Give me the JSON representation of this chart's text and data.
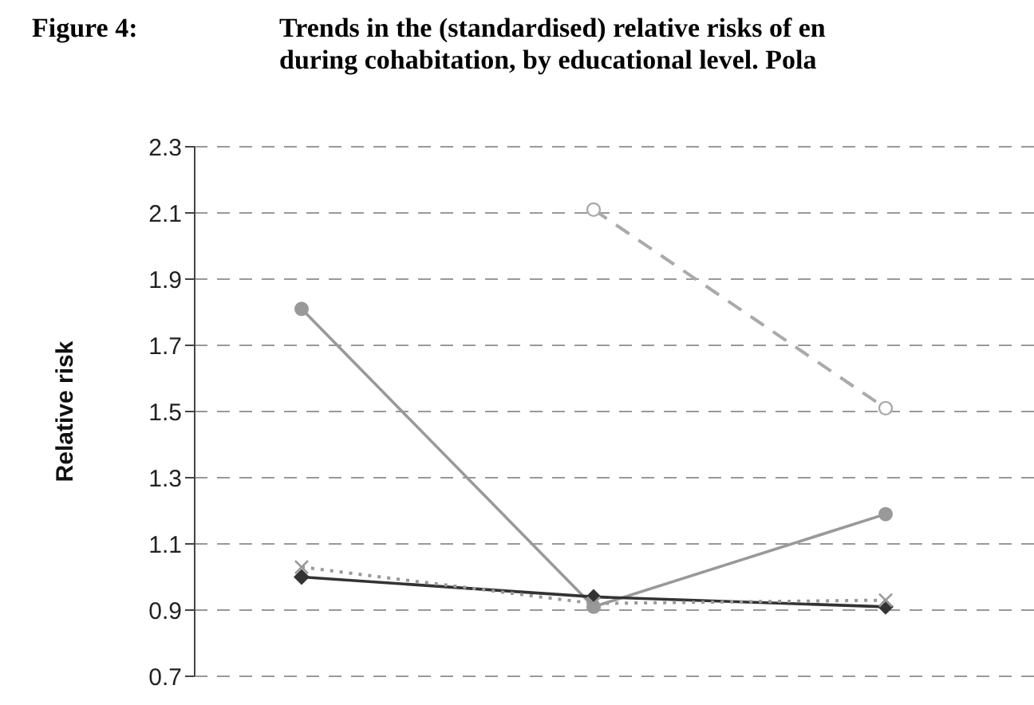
{
  "chart_data": {
    "type": "line",
    "title": "Trends in the (standardised) relative risks of en\nduring cohabitation, by educational level. Pola",
    "annotations": [
      "Figure 4:"
    ],
    "ylabel": "Relative risk",
    "categories": [
      null,
      null,
      null
    ],
    "ylim": [
      0.7,
      2.3
    ],
    "yticks": [
      0.7,
      0.9,
      1.1,
      1.3,
      1.5,
      1.7,
      1.9,
      2.1,
      2.3
    ],
    "grid": "y",
    "tick_labels": "y",
    "legend": false,
    "series": [
      {
        "color": "#999999",
        "values": [
          1.81,
          0.91,
          1.19
        ],
        "marker": "circle",
        "line_style": "solid"
      },
      {
        "color": "#aaaaaa",
        "values": [
          null,
          2.11,
          1.51
        ],
        "marker": "open-circle",
        "line_style": "dashed"
      },
      {
        "color": "#333333",
        "values": [
          1.0,
          0.94,
          0.91
        ],
        "marker": "diamond",
        "line_style": "solid"
      },
      {
        "color": "#999999",
        "values": [
          1.03,
          0.92,
          0.93
        ],
        "marker": "cross",
        "line_style": "dotted"
      }
    ]
  }
}
